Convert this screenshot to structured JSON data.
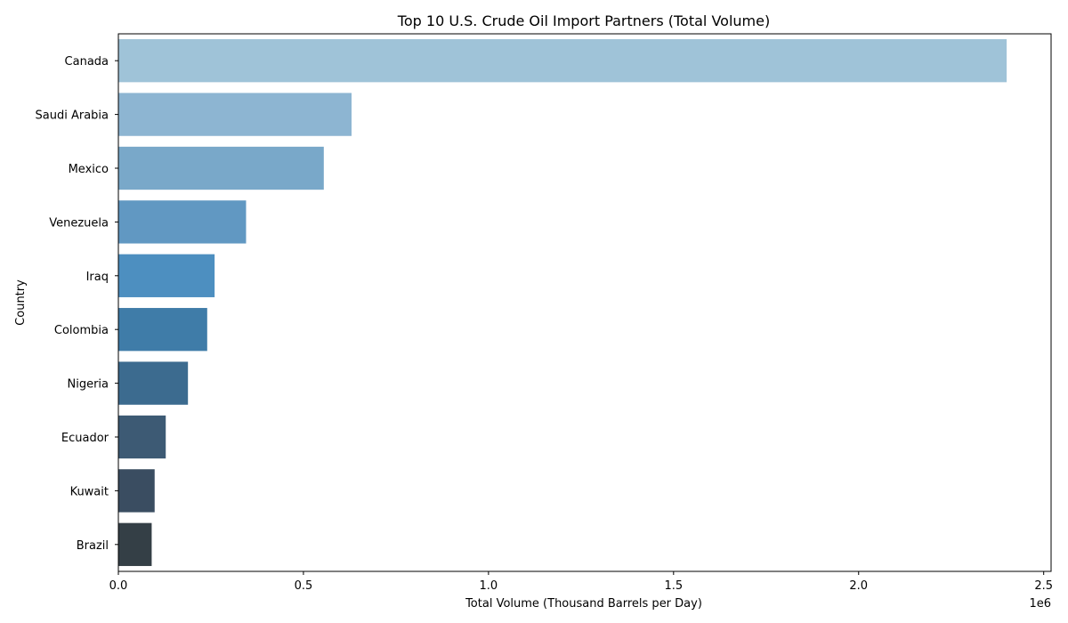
{
  "chart_data": {
    "type": "bar",
    "orientation": "horizontal",
    "title": "Top 10 U.S. Crude Oil Import Partners (Total Volume)",
    "xlabel": "Total Volume (Thousand Barrels per Day)",
    "ylabel": "Country",
    "x_offset_label": "1e6",
    "xlim": [
      0,
      2.52
    ],
    "xticks": [
      0.0,
      0.5,
      1.0,
      1.5,
      2.0,
      2.5
    ],
    "xtick_labels": [
      "0.0",
      "0.5",
      "1.0",
      "1.5",
      "2.0",
      "2.5"
    ],
    "value_unit_multiplier": 1000000,
    "grid": false,
    "categories": [
      "Canada",
      "Saudi Arabia",
      "Mexico",
      "Venezuela",
      "Iraq",
      "Colombia",
      "Nigeria",
      "Ecuador",
      "Kuwait",
      "Brazil"
    ],
    "values": [
      2.4,
      0.63,
      0.555,
      0.345,
      0.26,
      0.24,
      0.188,
      0.128,
      0.098,
      0.09
    ],
    "colors": [
      "#9fc3d8",
      "#8db5d2",
      "#79a8c9",
      "#6198c2",
      "#4d8fc0",
      "#3f7ca8",
      "#3c6b8f",
      "#3d5a74",
      "#3a4d61",
      "#343f46"
    ]
  }
}
